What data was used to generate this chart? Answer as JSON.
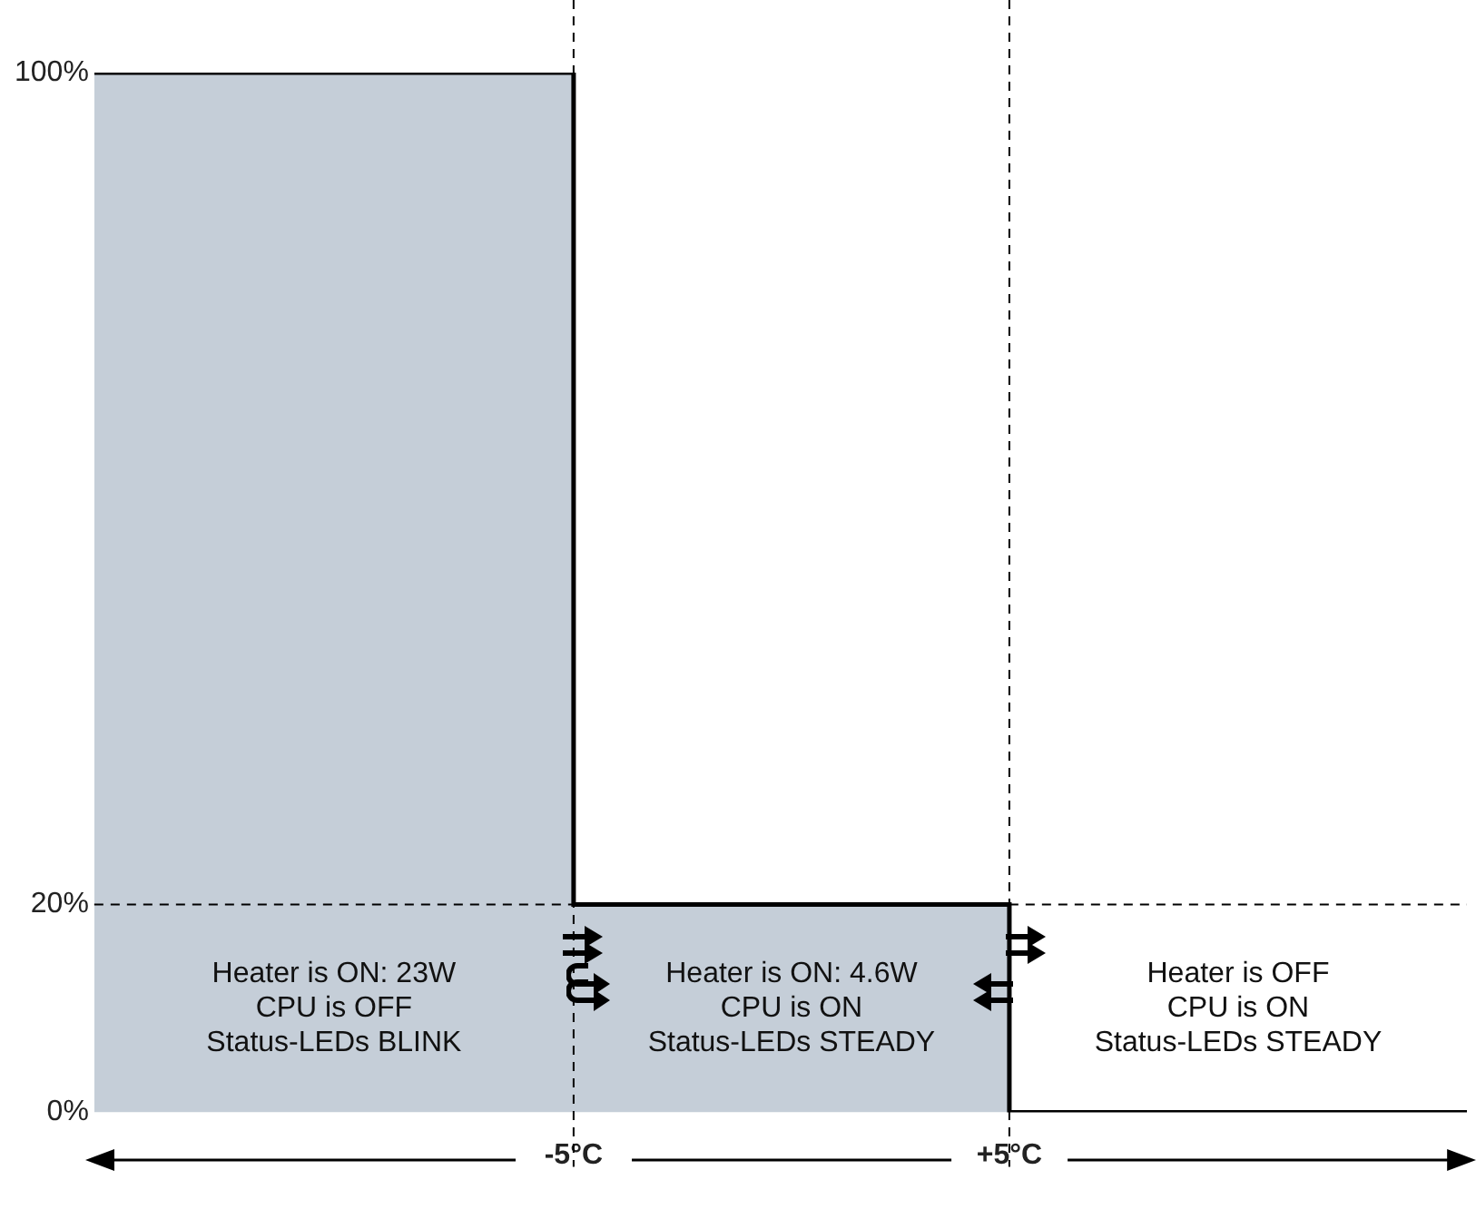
{
  "chart_data": {
    "type": "area",
    "x": [
      -16,
      -5,
      -5,
      5,
      5,
      15.5
    ],
    "series": [
      {
        "color": "#c5ced8",
        "values": [
          100,
          100,
          20,
          20,
          0,
          0
        ]
      }
    ],
    "xlim": [
      -16,
      15.5
    ],
    "xticks": [
      {
        "value": -5,
        "label": "-5°C"
      },
      {
        "value": 5,
        "label": "+5°C"
      }
    ],
    "ylim": [
      0,
      100
    ],
    "yticks": [
      {
        "value": 0,
        "label": "0%"
      },
      {
        "value": 20,
        "label": "20%"
      },
      {
        "value": 100,
        "label": "100%"
      }
    ],
    "grid": false,
    "legend": false,
    "marker": "none",
    "line_style": "solid",
    "ref_lines": [
      {
        "axis": "x",
        "value": -5,
        "line_style": "dashed"
      },
      {
        "axis": "x",
        "value": 5,
        "line_style": "dashed"
      },
      {
        "axis": "y",
        "value": 20,
        "line_style": "dashed"
      }
    ],
    "annotations": [
      "Heater is ON: 23W\nCPU is OFF\nStatus-LEDs BLINK",
      "Heater is ON: 4.6W\nCPU is ON\nStatus-LEDs STEADY",
      "Heater is OFF\nCPU is ON\nStatus-LEDs STEADY"
    ]
  }
}
